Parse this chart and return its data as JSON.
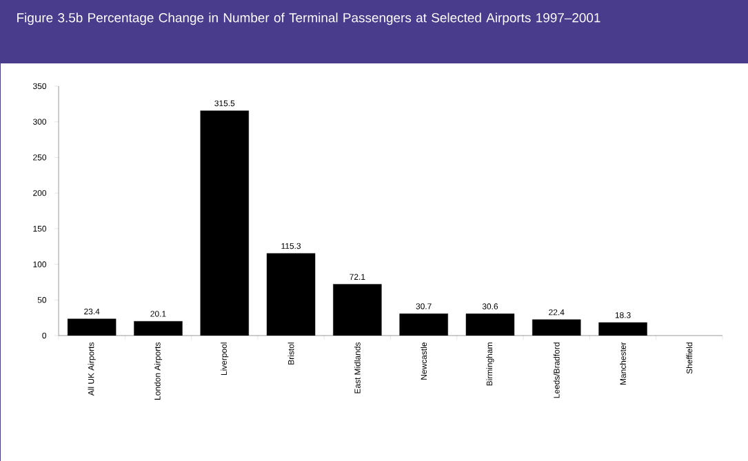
{
  "chart_data": {
    "type": "bar",
    "title": "Figure 3.5b  Percentage Change in Number of Terminal Passengers at Selected Airports 1997–2001",
    "categories": [
      "All UK Airports",
      "London Airports",
      "Liverpool",
      "Bristol",
      "East Midlands",
      "Newcastle",
      "Birmingham",
      "Leeds/Bradford",
      "Manchester",
      "Sheffield"
    ],
    "values": [
      23.4,
      20.1,
      315.5,
      115.3,
      72.1,
      30.7,
      30.6,
      22.4,
      18.3,
      null
    ],
    "color": "#000000",
    "ylim": [
      0,
      350
    ],
    "yticks": [
      0,
      50,
      100,
      150,
      200,
      250,
      300,
      350
    ],
    "data_labels": true,
    "grid": false
  }
}
